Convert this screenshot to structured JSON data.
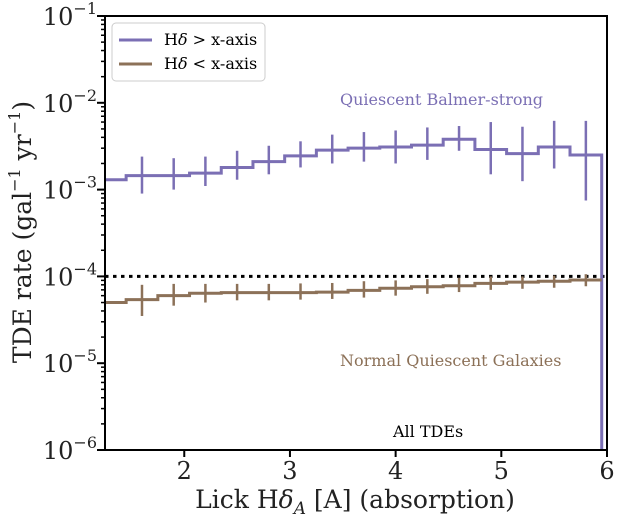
{
  "chart_data": {
    "type": "line",
    "plot_style": "step-histogram-with-errorbars",
    "title": "",
    "xlabel": "Lick Hδₐ [A] (absorption)",
    "xlabel_parts": {
      "pre": "Lick H",
      "delta": "δ",
      "sub": "A",
      "post": " [A] (absorption)"
    },
    "ylabel": "TDE rate (gal⁻¹ yr⁻¹)",
    "ylabel_parts": {
      "pre": "TDE rate (gal",
      "sup1": "−1",
      "mid": " yr",
      "sup2": "−1",
      "post": ")"
    },
    "x_scale": "linear",
    "y_scale": "log",
    "xlim": [
      1.25,
      6.0
    ],
    "ylim": [
      1e-06,
      0.1
    ],
    "x_ticks": [
      2,
      3,
      4,
      5,
      6
    ],
    "x_tick_labels": [
      "2",
      "3",
      "4",
      "5",
      "6"
    ],
    "y_ticks": [
      1e-06,
      1e-05,
      0.0001,
      0.001,
      0.01,
      0.1
    ],
    "y_tick_labels": [
      {
        "base": "10",
        "exp": "−6"
      },
      {
        "base": "10",
        "exp": "−5"
      },
      {
        "base": "10",
        "exp": "−4"
      },
      {
        "base": "10",
        "exp": "−3"
      },
      {
        "base": "10",
        "exp": "−2"
      },
      {
        "base": "10",
        "exp": "−1"
      }
    ],
    "bin_edges": [
      1.3,
      1.45,
      1.75,
      2.05,
      2.35,
      2.65,
      2.95,
      3.25,
      3.55,
      3.85,
      4.15,
      4.45,
      4.75,
      5.05,
      5.35,
      5.65,
      5.95
    ],
    "series": [
      {
        "name": "Hδ > x-axis",
        "legend_label": {
          "pre": "H",
          "delta": "δ",
          "post": " > x-axis"
        },
        "color": "#7b6fb4",
        "bin_centers": [
          1.6,
          1.9,
          2.2,
          2.5,
          2.8,
          3.1,
          3.4,
          3.7,
          4.0,
          4.3,
          4.6,
          4.9,
          5.2,
          5.5,
          5.8
        ],
        "values": [
          0.0013,
          0.00145,
          0.00145,
          0.00155,
          0.0018,
          0.0021,
          0.00245,
          0.00285,
          0.003,
          0.0031,
          0.00325,
          0.0038,
          0.0029,
          0.0026,
          0.0031,
          0.0025
        ],
        "err_low": [
          0.0009,
          0.001,
          0.0011,
          0.0013,
          0.0015,
          0.0018,
          0.002,
          0.0021,
          0.002,
          0.0022,
          0.0028,
          0.0015,
          0.00125,
          0.00175,
          0.00075
        ],
        "err_high": [
          0.0024,
          0.0023,
          0.0024,
          0.0028,
          0.0032,
          0.0036,
          0.0043,
          0.0046,
          0.0048,
          0.0052,
          0.0054,
          0.006,
          0.0053,
          0.0062,
          0.0062
        ],
        "drop_to": 1e-06,
        "annotation": "Quiescent Balmer-strong"
      },
      {
        "name": "Hδ < x-axis",
        "legend_label": {
          "pre": "H",
          "delta": "δ",
          "post": " < x-axis"
        },
        "color": "#8c7158",
        "bin_centers": [
          1.6,
          1.9,
          2.2,
          2.5,
          2.8,
          3.1,
          3.4,
          3.7,
          4.0,
          4.3,
          4.6,
          4.9,
          5.2,
          5.5,
          5.8
        ],
        "values": [
          5e-05,
          5.4e-05,
          6e-05,
          6.4e-05,
          6.5e-05,
          6.5e-05,
          6.5e-05,
          6.6e-05,
          6.9e-05,
          7.3e-05,
          7.6e-05,
          7.8e-05,
          8.3e-05,
          8.6e-05,
          8.8e-05,
          9.1e-05
        ],
        "err_low": [
          3.5e-05,
          4.6e-05,
          5e-05,
          5.3e-05,
          5.3e-05,
          5.4e-05,
          5.5e-05,
          5.7e-05,
          6e-05,
          6.3e-05,
          6.6e-05,
          7e-05,
          7.2e-05,
          7.4e-05,
          7.7e-05
        ],
        "err_high": [
          8e-05,
          8.2e-05,
          8.2e-05,
          8.2e-05,
          8.2e-05,
          8.3e-05,
          8.4e-05,
          8.8e-05,
          9e-05,
          9.3e-05,
          9.6e-05,
          0.0001,
          0.0001,
          0.000102,
          0.000106
        ],
        "annotation": "Normal Quiescent Galaxies"
      }
    ],
    "reference_line": {
      "y": 0.0001,
      "style": "dotted",
      "color": "#000000",
      "label": "All TDEs"
    },
    "legend": {
      "position": "top-left"
    }
  }
}
